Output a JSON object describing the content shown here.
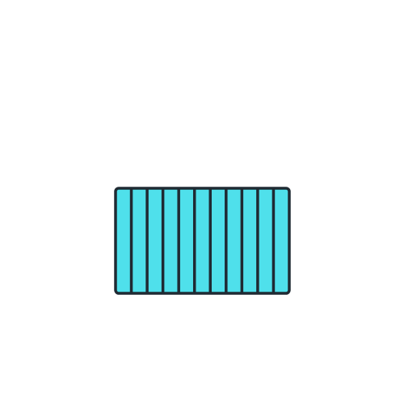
{
  "figure": {
    "icon": "striped-panel-icon",
    "stripe_count": 11,
    "colors": {
      "background": "#ffffff",
      "fill": "#4fe0eb",
      "stroke": "#1f2a33"
    }
  }
}
